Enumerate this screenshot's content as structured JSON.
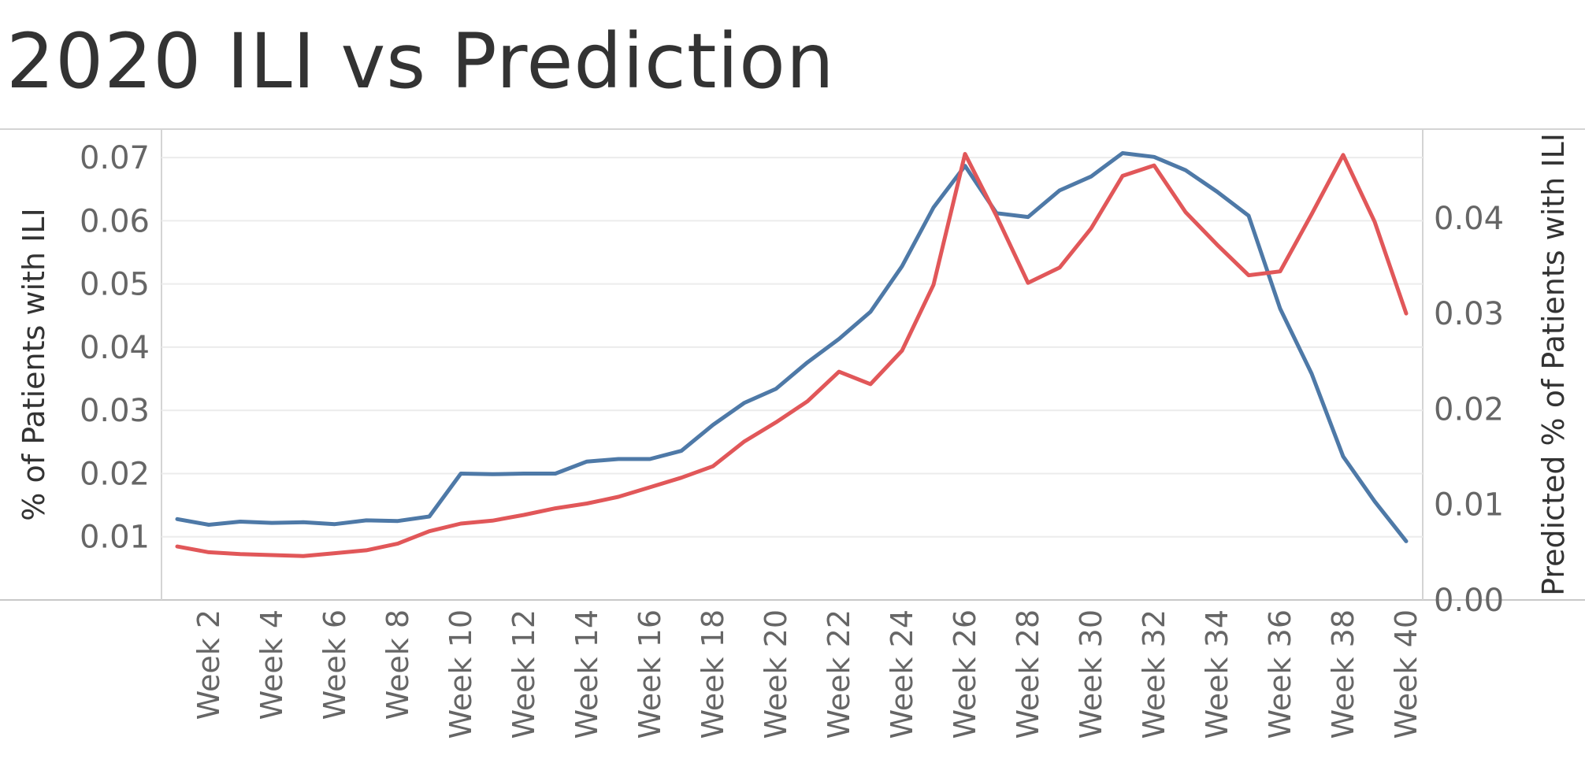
{
  "chart_data": {
    "type": "line",
    "title": "2020 ILI vs Prediction",
    "xlabel": "",
    "ylabel": "% of Patients with ILI",
    "y2label": "Predicted % of Patients with ILI",
    "ylim": [
      0.0,
      0.0745
    ],
    "y2lim": [
      0.0,
      0.0493
    ],
    "yticks": [
      "0.01",
      "0.02",
      "0.03",
      "0.04",
      "0.05",
      "0.06",
      "0.07"
    ],
    "y2ticks": [
      "0.00",
      "0.01",
      "0.02",
      "0.03",
      "0.04"
    ],
    "grid": true,
    "legend": "none",
    "x": [
      "Week 1",
      "Week 2",
      "Week 3",
      "Week 4",
      "Week 5",
      "Week 6",
      "Week 7",
      "Week 8",
      "Week 9",
      "Week 10",
      "Week 11",
      "Week 12",
      "Week 13",
      "Week 14",
      "Week 15",
      "Week 16",
      "Week 17",
      "Week 18",
      "Week 19",
      "Week 20",
      "Week 21",
      "Week 22",
      "Week 23",
      "Week 24",
      "Week 25",
      "Week 26",
      "Week 27",
      "Week 28",
      "Week 29",
      "Week 30",
      "Week 31",
      "Week 32",
      "Week 33",
      "Week 34",
      "Week 35",
      "Week 36",
      "Week 37",
      "Week 38",
      "Week 39",
      "Week 40"
    ],
    "xticks": [
      "Week 2",
      "Week 4",
      "Week 6",
      "Week 8",
      "Week 10",
      "Week 12",
      "Week 14",
      "Week 16",
      "Week 18",
      "Week 20",
      "Week 22",
      "Week 24",
      "Week 26",
      "Week 28",
      "Week 30",
      "Week 32",
      "Week 34",
      "Week 36",
      "Week 38",
      "Week 40"
    ],
    "series": [
      {
        "axis": "left",
        "color": "#4e79a7",
        "values": [
          0.0128,
          0.0119,
          0.0124,
          0.0122,
          0.0123,
          0.012,
          0.0126,
          0.0125,
          0.0132,
          0.02,
          0.0199,
          0.02,
          0.02,
          0.0219,
          0.0223,
          0.0223,
          0.0236,
          0.0277,
          0.0312,
          0.0334,
          0.0376,
          0.0413,
          0.0456,
          0.0528,
          0.0621,
          0.0687,
          0.0612,
          0.0606,
          0.0648,
          0.067,
          0.0707,
          0.0701,
          0.068,
          0.0646,
          0.0608,
          0.0461,
          0.0358,
          0.0227,
          0.0156,
          0.0093
        ]
      },
      {
        "axis": "right",
        "color": "#e15759",
        "values": [
          0.0056,
          0.005,
          0.0048,
          0.0047,
          0.0046,
          0.0049,
          0.0052,
          0.0059,
          0.0072,
          0.008,
          0.0083,
          0.0089,
          0.0096,
          0.0101,
          0.0108,
          0.0118,
          0.0128,
          0.014,
          0.0166,
          0.0186,
          0.0208,
          0.0239,
          0.0226,
          0.0261,
          0.033,
          0.0467,
          0.0402,
          0.0332,
          0.0348,
          0.0389,
          0.0444,
          0.0455,
          0.0406,
          0.0372,
          0.034,
          0.0344,
          0.0404,
          0.0466,
          0.0396,
          0.03
        ]
      }
    ]
  }
}
